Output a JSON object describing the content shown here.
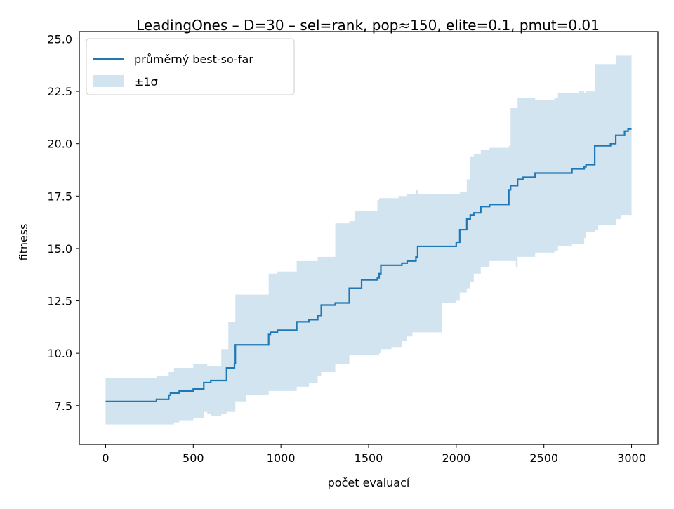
{
  "chart_data": {
    "type": "line",
    "title": "LeadingOnes – D=30 – sel=rank, pop≈150, elite=0.1, pmut=0.01",
    "xlabel": "počet evaluací",
    "ylabel": "fitness",
    "xlim": [
      -150,
      3150
    ],
    "ylim": [
      5.65,
      25.35
    ],
    "xticks": [
      0,
      500,
      1000,
      1500,
      2000,
      2500,
      3000
    ],
    "xtick_labels": [
      "0",
      "500",
      "1000",
      "1500",
      "2000",
      "2500",
      "3000"
    ],
    "yticks": [
      7.5,
      10.0,
      12.5,
      15.0,
      17.5,
      20.0,
      22.5,
      25.0
    ],
    "ytick_labels": [
      "7.5",
      "10.0",
      "12.5",
      "15.0",
      "17.5",
      "20.0",
      "22.5",
      "25.0"
    ],
    "grid": false,
    "legend_position": "top-left",
    "series": [
      {
        "name": "průměrný best-so-far",
        "color": "#1f77b4",
        "x": [
          0,
          290,
          360,
          370,
          420,
          500,
          560,
          580,
          600,
          660,
          690,
          700,
          735,
          740,
          800,
          930,
          940,
          980,
          1090,
          1160,
          1210,
          1230,
          1310,
          1390,
          1420,
          1460,
          1550,
          1560,
          1570,
          1630,
          1670,
          1690,
          1720,
          1770,
          1780,
          1920,
          2000,
          2020,
          2060,
          2080,
          2100,
          2140,
          2190,
          2300,
          2310,
          2350,
          2380,
          2410,
          2450,
          2560,
          2580,
          2660,
          2700,
          2730,
          2740,
          2790,
          2810,
          2880,
          2910,
          2940,
          2960,
          2980,
          3000
        ],
        "y": [
          7.7,
          7.8,
          8.0,
          8.1,
          8.2,
          8.3,
          8.6,
          8.6,
          8.7,
          8.7,
          9.3,
          9.3,
          9.5,
          10.4,
          10.4,
          10.9,
          11.0,
          11.1,
          11.5,
          11.6,
          11.8,
          12.3,
          12.4,
          13.1,
          13.1,
          13.5,
          13.6,
          13.8,
          14.2,
          14.2,
          14.2,
          14.3,
          14.4,
          14.6,
          15.1,
          15.1,
          15.3,
          15.9,
          16.4,
          16.6,
          16.7,
          17.0,
          17.1,
          17.8,
          18.0,
          18.3,
          18.4,
          18.4,
          18.6,
          18.6,
          18.6,
          18.8,
          18.8,
          18.9,
          19.0,
          19.9,
          19.9,
          20.0,
          20.4,
          20.4,
          20.6,
          20.7,
          20.7
        ]
      }
    ],
    "band": {
      "name": "±1σ",
      "color": "#1f77b4",
      "opacity": 0.2,
      "x": [
        0,
        290,
        360,
        390,
        420,
        500,
        560,
        580,
        600,
        660,
        690,
        700,
        720,
        735,
        740,
        800,
        930,
        940,
        980,
        1090,
        1160,
        1210,
        1230,
        1310,
        1390,
        1420,
        1460,
        1550,
        1560,
        1570,
        1630,
        1670,
        1690,
        1720,
        1750,
        1770,
        1780,
        1920,
        2000,
        2020,
        2060,
        2080,
        2100,
        2140,
        2190,
        2300,
        2310,
        2340,
        2350,
        2380,
        2410,
        2450,
        2560,
        2580,
        2660,
        2700,
        2730,
        2740,
        2790,
        2810,
        2880,
        2910,
        2940,
        2960,
        2980,
        3000
      ],
      "upper": [
        8.8,
        8.9,
        9.1,
        9.3,
        9.3,
        9.5,
        9.5,
        9.4,
        9.4,
        10.2,
        10.2,
        11.5,
        11.5,
        11.5,
        12.8,
        12.8,
        13.8,
        13.8,
        13.9,
        14.4,
        14.4,
        14.6,
        14.6,
        16.2,
        16.3,
        16.8,
        16.8,
        17.3,
        17.4,
        17.4,
        17.4,
        17.5,
        17.5,
        17.6,
        17.6,
        17.8,
        17.6,
        17.6,
        17.6,
        17.7,
        18.3,
        19.4,
        19.5,
        19.7,
        19.8,
        19.9,
        21.7,
        21.7,
        22.2,
        22.2,
        22.2,
        22.1,
        22.2,
        22.4,
        22.4,
        22.5,
        22.4,
        22.5,
        23.8,
        23.8,
        23.8,
        24.2,
        24.2,
        24.2,
        24.2,
        24.5
      ],
      "lower": [
        6.6,
        6.6,
        6.6,
        6.7,
        6.8,
        6.9,
        7.2,
        7.1,
        7.0,
        7.1,
        7.2,
        7.2,
        7.2,
        7.2,
        7.7,
        8.0,
        8.2,
        8.2,
        8.2,
        8.4,
        8.6,
        8.9,
        9.1,
        9.5,
        9.9,
        9.9,
        9.9,
        9.9,
        10.0,
        10.2,
        10.3,
        10.3,
        10.6,
        10.8,
        11.0,
        11.0,
        11.0,
        12.4,
        12.5,
        12.9,
        13.1,
        13.4,
        13.8,
        14.1,
        14.4,
        14.4,
        14.4,
        14.1,
        14.6,
        14.6,
        14.6,
        14.8,
        14.9,
        15.1,
        15.2,
        15.2,
        15.5,
        15.8,
        15.9,
        16.1,
        16.1,
        16.4,
        16.6,
        16.6,
        16.6,
        17.0
      ]
    }
  }
}
